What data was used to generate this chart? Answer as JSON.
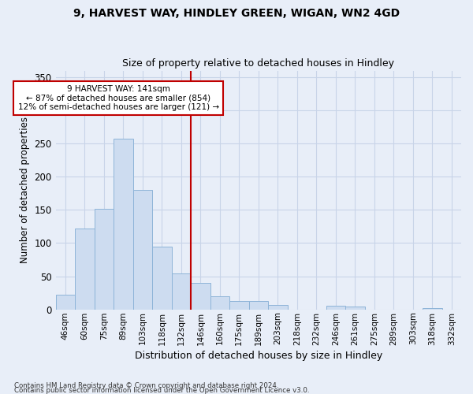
{
  "title_line1": "9, HARVEST WAY, HINDLEY GREEN, WIGAN, WN2 4GD",
  "title_line2": "Size of property relative to detached houses in Hindley",
  "xlabel": "Distribution of detached houses by size in Hindley",
  "ylabel": "Number of detached properties",
  "categories": [
    "46sqm",
    "60sqm",
    "75sqm",
    "89sqm",
    "103sqm",
    "118sqm",
    "132sqm",
    "146sqm",
    "160sqm",
    "175sqm",
    "189sqm",
    "203sqm",
    "218sqm",
    "232sqm",
    "246sqm",
    "261sqm",
    "275sqm",
    "289sqm",
    "303sqm",
    "318sqm",
    "332sqm"
  ],
  "values": [
    22,
    122,
    152,
    257,
    180,
    95,
    54,
    40,
    20,
    13,
    13,
    7,
    0,
    0,
    5,
    4,
    0,
    0,
    0,
    2,
    0
  ],
  "bar_color": "#cddcf0",
  "bar_edge_color": "#8eb4d8",
  "vline_x": 6.5,
  "vline_color": "#c00000",
  "annotation_text": "9 HARVEST WAY: 141sqm\n← 87% of detached houses are smaller (854)\n12% of semi-detached houses are larger (121) →",
  "annotation_box_color": "white",
  "annotation_box_edge_color": "#c00000",
  "ylim": [
    0,
    360
  ],
  "yticks": [
    0,
    50,
    100,
    150,
    200,
    250,
    300,
    350
  ],
  "footer_line1": "Contains HM Land Registry data © Crown copyright and database right 2024.",
  "footer_line2": "Contains public sector information licensed under the Open Government Licence v3.0.",
  "bg_color": "#e8eef8",
  "plot_bg_color": "#e8eef8",
  "grid_color": "#c8d4e8"
}
